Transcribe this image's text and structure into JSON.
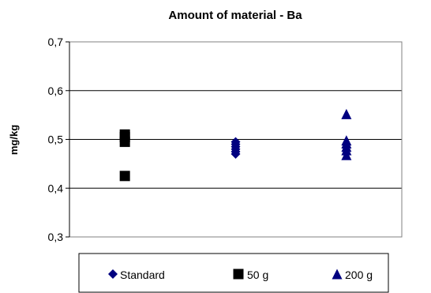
{
  "chart_data": {
    "type": "scatter",
    "title": "Amount of material - Ba",
    "xlabel": "",
    "ylabel": "mg/kg",
    "ylim": [
      0.3,
      0.7
    ],
    "yticks": [
      0.3,
      0.4,
      0.5,
      0.6,
      0.7
    ],
    "ytick_labels": [
      "0,3",
      "0,4",
      "0,5",
      "0,6",
      "0,7"
    ],
    "xlim": [
      0.5,
      3.5
    ],
    "grid": true,
    "legend_position": "bottom",
    "series": [
      {
        "name": "Standard",
        "marker": "diamond",
        "color": "#000080",
        "x": [
          2,
          2,
          2,
          2,
          2,
          2
        ],
        "y": [
          0.47,
          0.475,
          0.48,
          0.485,
          0.49,
          0.495
        ]
      },
      {
        "name": "50 g",
        "marker": "square",
        "color": "#000000",
        "x": [
          1,
          1,
          1,
          1
        ],
        "y": [
          0.425,
          0.495,
          0.505,
          0.51
        ]
      },
      {
        "name": "200 g",
        "marker": "triangle",
        "color": "#000080",
        "x": [
          3,
          3,
          3,
          3,
          3,
          3
        ],
        "y": [
          0.468,
          0.478,
          0.485,
          0.492,
          0.498,
          0.552
        ]
      }
    ]
  }
}
